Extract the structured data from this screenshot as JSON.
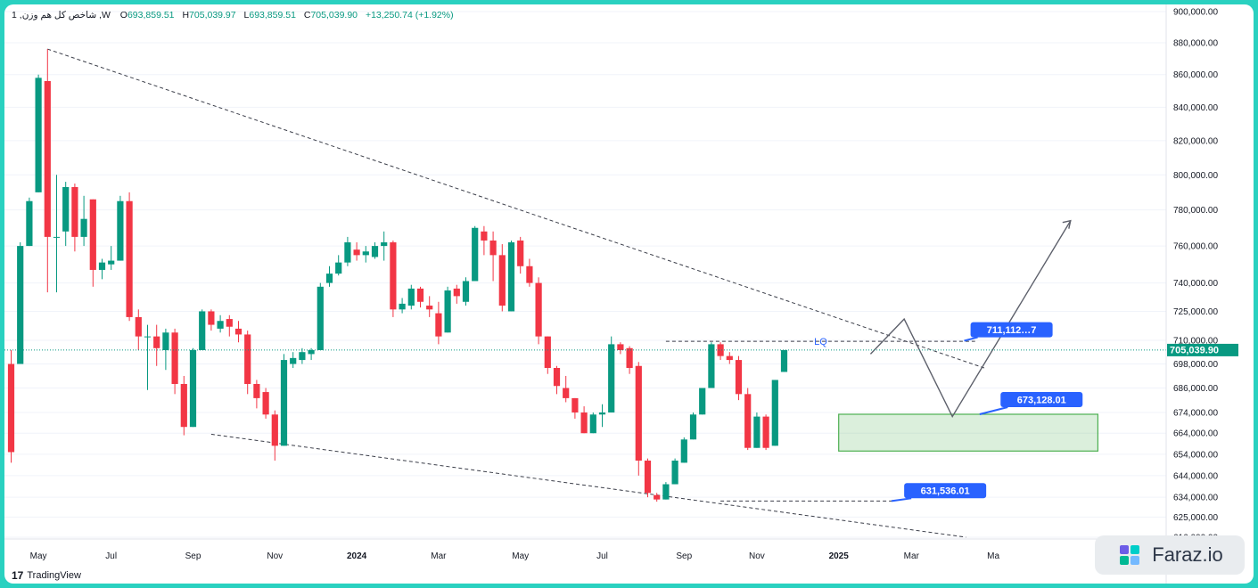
{
  "header": {
    "title": "1 ,شاخص کل هم وزن ,W",
    "open_label": "O",
    "open": "693,859.51",
    "high_label": "H",
    "high": "705,039.97",
    "low_label": "L",
    "low": "693,859.51",
    "close_label": "C",
    "close": "705,039.90",
    "change": "+13,250.74 (+1.92%)"
  },
  "branding": {
    "tradingview": "TradingView",
    "badge": "Faraz.io"
  },
  "chart_data": {
    "type": "candlestick",
    "y_scale": "log",
    "ylim": [
      616000,
      900000
    ],
    "y_ticks": [
      900000,
      880000,
      860000,
      840000,
      820000,
      800000,
      780000,
      760000,
      740000,
      725000,
      710000,
      698000,
      686000,
      674000,
      664000,
      654000,
      644000,
      634000,
      625000,
      616000
    ],
    "y_tick_labels": [
      "900,000.00",
      "880,000.00",
      "860,000.00",
      "840,000.00",
      "820,000.00",
      "800,000.00",
      "780,000.00",
      "760,000.00",
      "740,000.00",
      "725,000.00",
      "710,000.00",
      "698,000.00",
      "686,000.00",
      "674,000.00",
      "664,000.00",
      "654,000.00",
      "644,000.00",
      "634,000.00",
      "625,000.00",
      "616,000.00"
    ],
    "x_labels": [
      {
        "i": 3,
        "label": "May"
      },
      {
        "i": 11,
        "label": "Jul"
      },
      {
        "i": 20,
        "label": "Sep"
      },
      {
        "i": 29,
        "label": "Nov"
      },
      {
        "i": 38,
        "label": "2024"
      },
      {
        "i": 47,
        "label": "Mar"
      },
      {
        "i": 56,
        "label": "May"
      },
      {
        "i": 65,
        "label": "Jul"
      },
      {
        "i": 74,
        "label": "Sep"
      },
      {
        "i": 82,
        "label": "Nov"
      },
      {
        "i": 91,
        "label": "2025"
      },
      {
        "i": 99,
        "label": "Mar"
      },
      {
        "i": 108,
        "label": "Ma"
      }
    ],
    "last_price": 705039.9,
    "last_price_label": "705,039.90",
    "candles": [
      [
        698000,
        705000,
        650000,
        655000
      ],
      [
        698000,
        762000,
        698000,
        760000
      ],
      [
        760000,
        787000,
        760000,
        785000
      ],
      [
        790000,
        860000,
        790000,
        858000
      ],
      [
        856000,
        876000,
        735000,
        765000
      ],
      [
        765000,
        800000,
        735000,
        765000
      ],
      [
        768000,
        796000,
        760000,
        793000
      ],
      [
        793000,
        795000,
        757000,
        765000
      ],
      [
        765000,
        788000,
        760000,
        775000
      ],
      [
        786000,
        786000,
        738000,
        747000
      ],
      [
        747000,
        753000,
        742000,
        751000
      ],
      [
        750000,
        760000,
        747000,
        752000
      ],
      [
        752000,
        788000,
        752000,
        785000
      ],
      [
        785000,
        790000,
        720000,
        722000
      ],
      [
        722000,
        726000,
        705000,
        712000
      ],
      [
        712000,
        718000,
        685000,
        712000
      ],
      [
        712000,
        718000,
        697000,
        706000
      ],
      [
        705000,
        716000,
        695000,
        714000
      ],
      [
        714000,
        716000,
        683000,
        688000
      ],
      [
        688000,
        692000,
        663000,
        667000
      ],
      [
        667000,
        706000,
        667000,
        705000
      ],
      [
        705000,
        726000,
        705000,
        725000
      ],
      [
        725000,
        726000,
        715000,
        718000
      ],
      [
        716000,
        723000,
        714000,
        720000
      ],
      [
        721000,
        723000,
        712000,
        717000
      ],
      [
        716000,
        720000,
        709000,
        713000
      ],
      [
        713000,
        715000,
        683000,
        688000
      ],
      [
        688000,
        690000,
        676000,
        681000
      ],
      [
        684000,
        686000,
        671000,
        673000
      ],
      [
        673000,
        675000,
        651000,
        658000
      ],
      [
        658000,
        703000,
        658000,
        700000
      ],
      [
        698000,
        704000,
        696000,
        701000
      ],
      [
        700000,
        706000,
        698000,
        704000
      ],
      [
        703000,
        706000,
        700000,
        705000
      ],
      [
        705000,
        740000,
        705000,
        738000
      ],
      [
        740000,
        749000,
        738000,
        745000
      ],
      [
        745000,
        755000,
        744000,
        751000
      ],
      [
        751000,
        765000,
        749000,
        762000
      ],
      [
        758000,
        762000,
        752000,
        755000
      ],
      [
        755000,
        760000,
        751000,
        757000
      ],
      [
        754000,
        762000,
        753000,
        760000
      ],
      [
        760000,
        768000,
        752000,
        762000
      ],
      [
        762000,
        763000,
        722000,
        726000
      ],
      [
        726000,
        732000,
        724000,
        729000
      ],
      [
        728000,
        739000,
        726000,
        737000
      ],
      [
        737000,
        738000,
        727000,
        730000
      ],
      [
        728000,
        733000,
        722000,
        726000
      ],
      [
        724000,
        730000,
        708000,
        712000
      ],
      [
        714000,
        738000,
        714000,
        736000
      ],
      [
        737000,
        739000,
        729000,
        733000
      ],
      [
        730000,
        743000,
        728000,
        741000
      ],
      [
        741000,
        771000,
        741000,
        770000
      ],
      [
        768000,
        771000,
        755000,
        763000
      ],
      [
        763000,
        768000,
        741000,
        755000
      ],
      [
        755000,
        761000,
        725000,
        728000
      ],
      [
        725000,
        763000,
        725000,
        762000
      ],
      [
        763000,
        765000,
        745000,
        749000
      ],
      [
        749000,
        753000,
        738000,
        740000
      ],
      [
        740000,
        743000,
        708000,
        712000
      ],
      [
        712000,
        712000,
        693000,
        696000
      ],
      [
        696000,
        697000,
        683000,
        687000
      ],
      [
        686000,
        692000,
        679000,
        681000
      ],
      [
        681000,
        681000,
        671000,
        674000
      ],
      [
        674000,
        677000,
        664000,
        664000
      ],
      [
        664000,
        674000,
        664000,
        673000
      ],
      [
        673000,
        678000,
        667000,
        674000
      ],
      [
        674000,
        712000,
        674000,
        708000
      ],
      [
        708000,
        709000,
        703000,
        705000
      ],
      [
        706000,
        707000,
        693000,
        696000
      ],
      [
        697000,
        699000,
        644000,
        651000
      ],
      [
        651000,
        652000,
        634000,
        636000
      ],
      [
        635000,
        636000,
        632000,
        633000
      ],
      [
        633000,
        641000,
        633000,
        640000
      ],
      [
        640000,
        652000,
        640000,
        651000
      ],
      [
        650000,
        662000,
        650000,
        661000
      ],
      [
        661000,
        674000,
        661000,
        673000
      ],
      [
        673000,
        686000,
        673000,
        686000
      ],
      [
        686000,
        709000,
        686000,
        708000
      ],
      [
        708000,
        709000,
        700000,
        702000
      ],
      [
        702000,
        704000,
        698000,
        700000
      ],
      [
        700000,
        702000,
        680000,
        683000
      ],
      [
        683000,
        686000,
        656000,
        657000
      ],
      [
        657000,
        674000,
        657000,
        672000
      ],
      [
        672000,
        673000,
        656000,
        657000
      ],
      [
        658000,
        690000,
        658000,
        690000
      ],
      [
        694000,
        705000,
        694000,
        705000
      ]
    ],
    "tags": [
      {
        "label": "711,112…7",
        "value": 711112
      },
      {
        "label": "673,128.01",
        "value": 673128
      },
      {
        "label": "631,536.01",
        "value": 631536
      }
    ],
    "annotation": "LQ",
    "colors": {
      "up": "#089981",
      "down": "#f23645",
      "tag": "#2962ff",
      "zone": "#4caf50"
    }
  }
}
